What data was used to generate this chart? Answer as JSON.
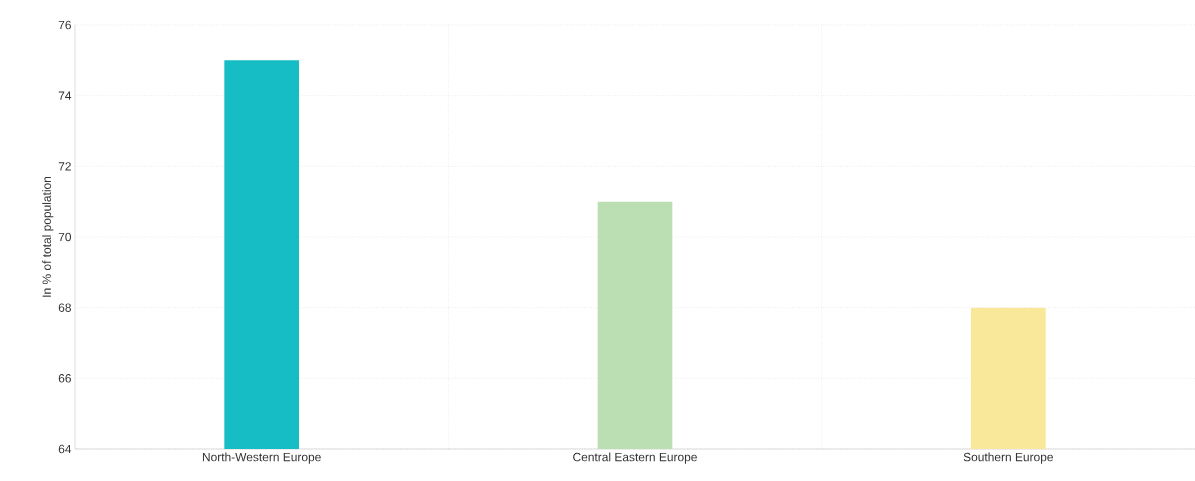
{
  "chart_data": {
    "type": "bar",
    "ylabel": "In % of total population",
    "categories": [
      "North-Western Europe",
      "Central Eastern Europe",
      "Southern Europe"
    ],
    "values": [
      75,
      71,
      68
    ],
    "colors": [
      "#16bdc5",
      "#bbdfb3",
      "#fae89a"
    ],
    "ylim": [
      64,
      76
    ],
    "yticks": [
      64,
      66,
      68,
      70,
      72,
      74,
      76
    ],
    "grid": true
  }
}
